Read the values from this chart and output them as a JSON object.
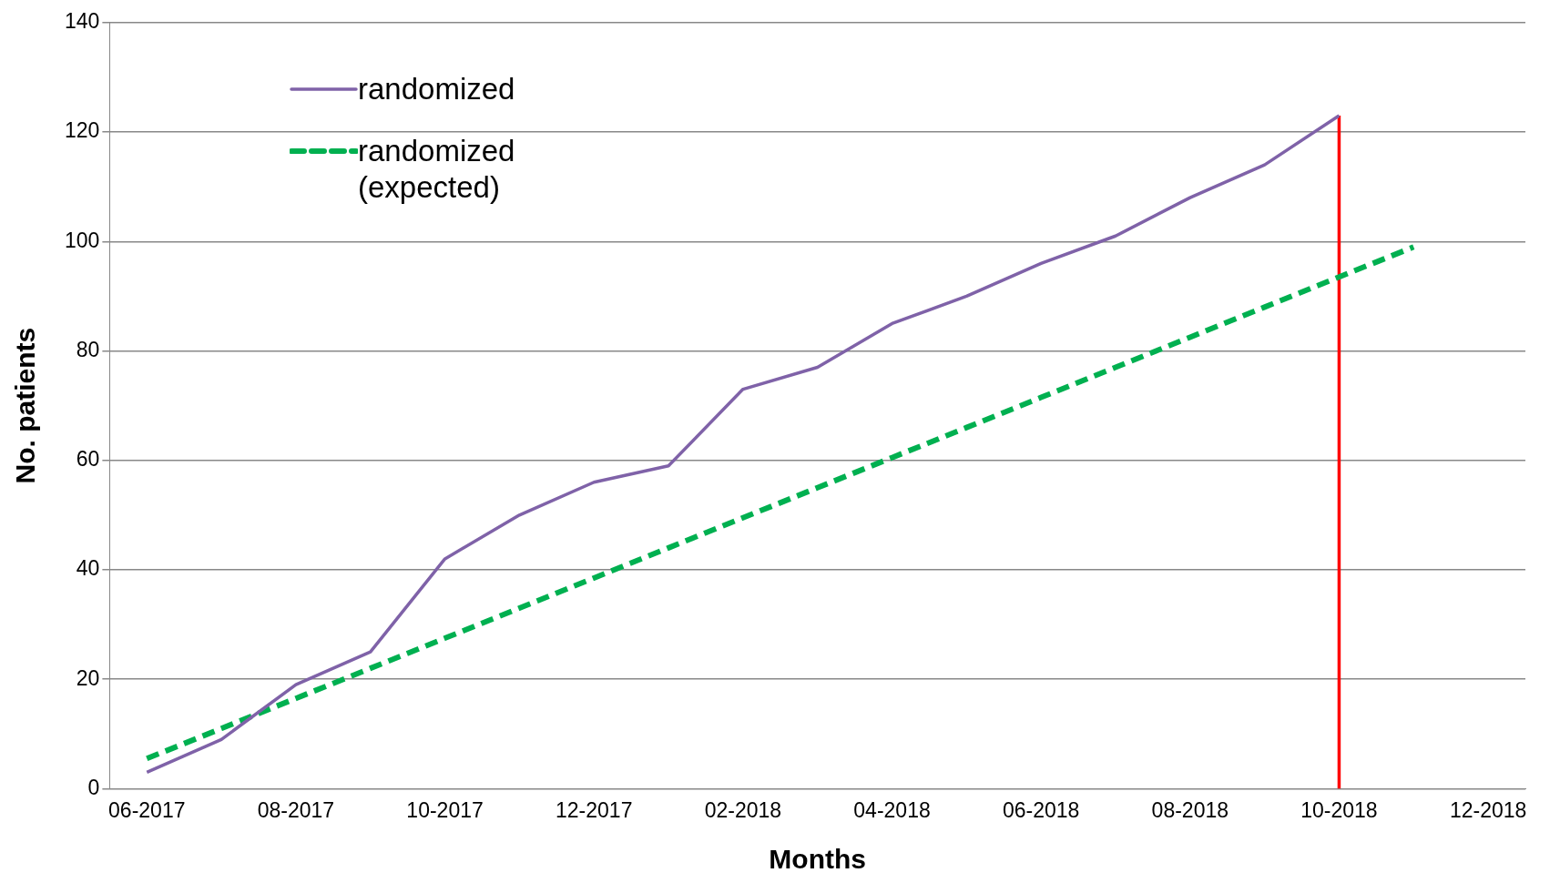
{
  "chart_data": {
    "type": "line",
    "xlabel": "Months",
    "ylabel": "No. patients",
    "categories": [
      "06-2017",
      null,
      "08-2017",
      null,
      "10-2017",
      null,
      "12-2017",
      null,
      "02-2018",
      null,
      "04-2018",
      null,
      "06-2018",
      null,
      "08-2018",
      null,
      "10-2018",
      null,
      "12-2018"
    ],
    "series": [
      {
        "name": "randomized",
        "color": "#7f62a8",
        "line_style": "solid",
        "values": [
          3,
          9,
          19,
          25,
          42,
          50,
          56,
          59,
          73,
          77,
          85,
          90,
          96,
          101,
          108,
          114,
          123,
          null,
          null
        ]
      },
      {
        "name": "randomized (expected)",
        "color": "#00b050",
        "line_style": "dashed",
        "values": [
          5.5,
          11,
          16.5,
          22,
          27.5,
          33,
          38.5,
          44,
          49.5,
          55,
          60.5,
          66,
          71.5,
          77,
          82.5,
          88,
          93.5,
          99,
          null
        ]
      },
      {
        "type": "line",
        "color": "#ff0000",
        "line_style": "solid",
        "x": [
          "10-2018",
          "10-2018"
        ],
        "values": [
          0,
          123
        ]
      }
    ],
    "ylim": [
      0,
      140
    ],
    "yticks": [
      0,
      20,
      40,
      60,
      80,
      100,
      120,
      140
    ],
    "grid": "y",
    "legend": "top left",
    "marker": "none"
  }
}
